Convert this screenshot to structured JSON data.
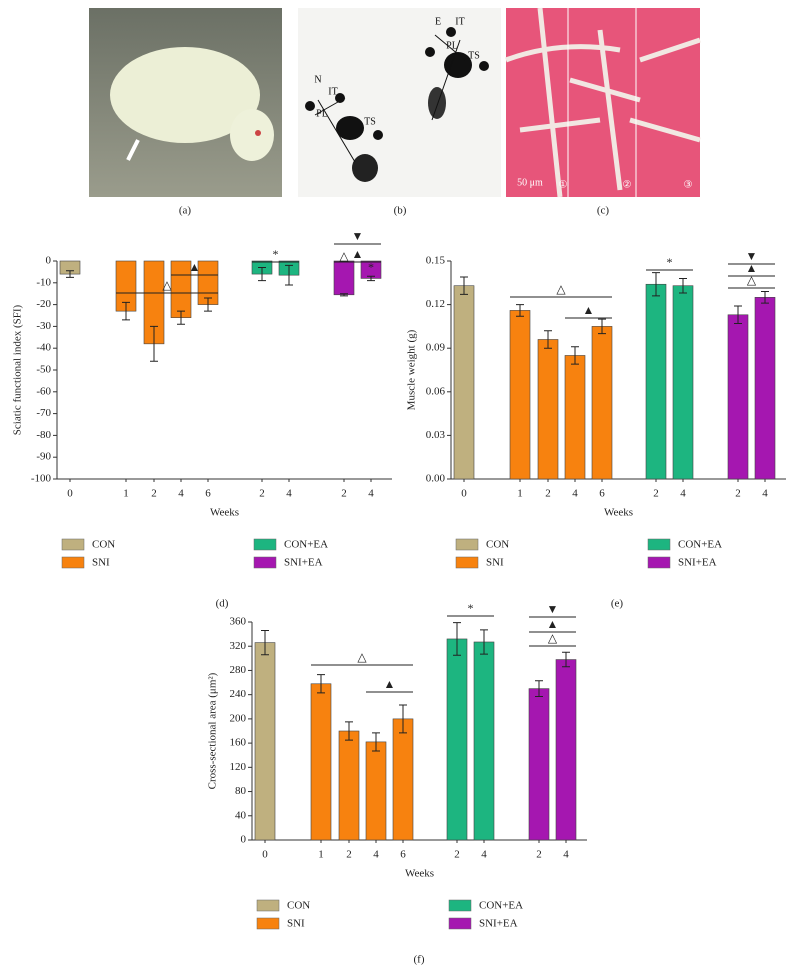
{
  "figure": {
    "panels": [
      {
        "label": "(a)"
      },
      {
        "label": "(b)",
        "annotations": [
          "N",
          "IT",
          "PL",
          "TS",
          "E",
          "IT",
          "PL",
          "TS"
        ]
      },
      {
        "label": "(c)",
        "annotations": [
          "50 μm",
          "①",
          "②",
          "③"
        ]
      }
    ]
  },
  "chart_data": [
    {
      "type": "bar",
      "label": "(d)",
      "y_label": "Sciatic functional index (SFI)",
      "x_label": "Weeks",
      "ylim": [
        -100,
        0
      ],
      "yticks": [
        0,
        -10,
        -20,
        -30,
        -40,
        -50,
        -60,
        -70,
        -80,
        -90,
        -100
      ],
      "series": [
        {
          "name": "CON",
          "color": "#bfb07f",
          "categories": [
            "0"
          ],
          "values": [
            -6
          ],
          "errors": [
            1.5
          ]
        },
        {
          "name": "SNI",
          "color": "#f7820f",
          "categories": [
            "1",
            "2",
            "4",
            "6"
          ],
          "values": [
            -23,
            -38,
            -26,
            -20
          ],
          "errors": [
            4,
            8,
            3,
            3
          ]
        },
        {
          "name": "CON+EA",
          "color": "#1db580",
          "categories": [
            "2",
            "4"
          ],
          "values": [
            -6,
            -6.5
          ],
          "errors": [
            3,
            4.5
          ]
        },
        {
          "name": "SNI+EA",
          "color": "#a517b0",
          "categories": [
            "2",
            "4"
          ],
          "values": [
            -15.5,
            -8
          ],
          "errors": [
            0.5,
            1
          ]
        }
      ],
      "annotations": [
        "△",
        "▲",
        "*",
        "▼",
        "▲",
        "△",
        "*"
      ]
    },
    {
      "type": "bar",
      "label": "(e)",
      "y_label": "Muscle weight (g)",
      "x_label": "Weeks",
      "ylim": [
        0,
        0.15
      ],
      "yticks": [
        {
          "value": 0,
          "label": "0.00"
        },
        {
          "value": 0.03,
          "label": "0.03"
        },
        {
          "value": 0.06,
          "label": "0.06"
        },
        {
          "value": 0.09,
          "label": "0.09"
        },
        {
          "value": 0.12,
          "label": "0.12"
        },
        {
          "value": 0.15,
          "label": "0.15"
        }
      ],
      "series": [
        {
          "name": "CON",
          "color": "#bfb07f",
          "categories": [
            "0"
          ],
          "values": [
            0.133
          ],
          "errors": [
            0.006
          ]
        },
        {
          "name": "SNI",
          "color": "#f7820f",
          "categories": [
            "1",
            "2",
            "4",
            "6"
          ],
          "values": [
            0.116,
            0.096,
            0.085,
            0.105
          ],
          "errors": [
            0.004,
            0.006,
            0.006,
            0.005
          ]
        },
        {
          "name": "CON+EA",
          "color": "#1db580",
          "categories": [
            "2",
            "4"
          ],
          "values": [
            0.134,
            0.133
          ],
          "errors": [
            0.008,
            0.005
          ]
        },
        {
          "name": "SNI+EA",
          "color": "#a517b0",
          "categories": [
            "2",
            "4"
          ],
          "values": [
            0.113,
            0.125
          ],
          "errors": [
            0.006,
            0.004
          ]
        }
      ],
      "annotations": [
        "△",
        "▲",
        "*",
        "▼",
        "▲",
        "△"
      ]
    },
    {
      "type": "bar",
      "label": "(f)",
      "y_label": "Cross-sectional area (μm²)",
      "x_label": "Weeks",
      "ylim": [
        0,
        360
      ],
      "yticks": [
        0,
        40,
        80,
        120,
        160,
        200,
        240,
        280,
        320,
        360
      ],
      "series": [
        {
          "name": "CON",
          "color": "#bfb07f",
          "categories": [
            "0"
          ],
          "values": [
            326
          ],
          "errors": [
            20
          ]
        },
        {
          "name": "SNI",
          "color": "#f7820f",
          "categories": [
            "1",
            "2",
            "4",
            "6"
          ],
          "values": [
            258,
            180,
            162,
            200
          ],
          "errors": [
            15,
            15,
            15,
            23
          ]
        },
        {
          "name": "CON+EA",
          "color": "#1db580",
          "categories": [
            "2",
            "4"
          ],
          "values": [
            332,
            327
          ],
          "errors": [
            27,
            20
          ]
        },
        {
          "name": "SNI+EA",
          "color": "#a517b0",
          "categories": [
            "2",
            "4"
          ],
          "values": [
            250,
            298
          ],
          "errors": [
            13,
            12
          ]
        }
      ],
      "annotations": [
        "△",
        "▲",
        "*",
        "▼",
        "▲",
        "△"
      ]
    }
  ]
}
